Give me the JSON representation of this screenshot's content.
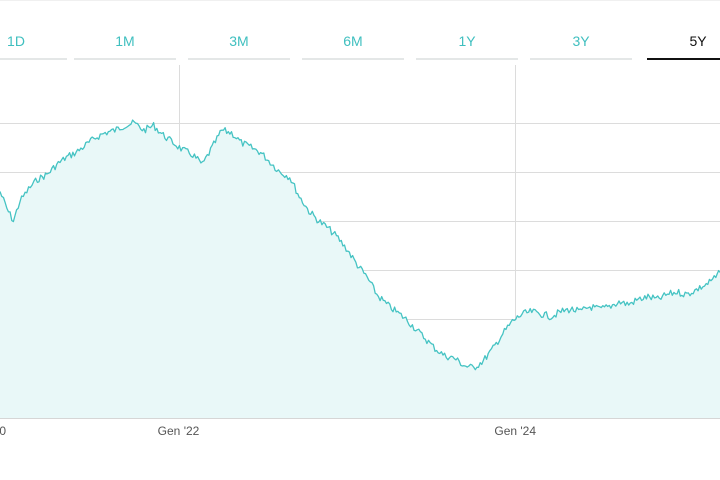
{
  "tabs": [
    {
      "label": "1D",
      "active": false
    },
    {
      "label": "1M",
      "active": false
    },
    {
      "label": "3M",
      "active": false
    },
    {
      "label": "6M",
      "active": false
    },
    {
      "label": "1Y",
      "active": false
    },
    {
      "label": "3Y",
      "active": false
    },
    {
      "label": "5Y",
      "active": true
    }
  ],
  "colors": {
    "accent": "#3fbfbf",
    "line": "#45c3c3",
    "area": "#e9f8f8",
    "grid": "#dcdcdc",
    "active_tab": "#111111"
  },
  "chart_data": {
    "type": "area",
    "title": "",
    "xlabel": "",
    "ylabel": "",
    "x_ticks": [
      "0",
      "Gen '22",
      "Gen '24"
    ],
    "x_tick_dates": [
      "2021-01-01",
      "2022-01-01",
      "2024-01-01"
    ],
    "x_range": [
      "2020-12-10",
      "2025-03-20"
    ],
    "y_range": [
      0,
      100
    ],
    "y_gridlines": [
      20,
      40,
      60,
      80,
      100
    ],
    "grid": true,
    "legend": "none",
    "series": [
      {
        "values": [
          [
            "2020-12-10",
            72
          ],
          [
            "2020-12-25",
            65
          ],
          [
            "2021-01-08",
            60
          ],
          [
            "2021-01-22",
            68
          ],
          [
            "2021-02-10",
            73
          ],
          [
            "2021-03-01",
            77
          ],
          [
            "2021-03-22",
            79
          ],
          [
            "2021-04-12",
            83
          ],
          [
            "2021-05-03",
            86
          ],
          [
            "2021-05-24",
            88
          ],
          [
            "2021-06-14",
            91
          ],
          [
            "2021-07-05",
            94
          ],
          [
            "2021-07-26",
            96
          ],
          [
            "2021-08-16",
            97
          ],
          [
            "2021-09-06",
            99
          ],
          [
            "2021-09-27",
            100
          ],
          [
            "2021-10-18",
            97
          ],
          [
            "2021-11-08",
            99
          ],
          [
            "2021-11-29",
            95
          ],
          [
            "2021-12-20",
            92
          ],
          [
            "2022-01-10",
            89
          ],
          [
            "2022-02-01",
            87
          ],
          [
            "2022-02-22",
            83
          ],
          [
            "2022-03-15",
            90
          ],
          [
            "2022-04-05",
            97
          ],
          [
            "2022-04-26",
            96
          ],
          [
            "2022-05-17",
            92
          ],
          [
            "2022-06-07",
            90
          ],
          [
            "2022-06-28",
            88
          ],
          [
            "2022-07-19",
            84
          ],
          [
            "2022-08-09",
            80
          ],
          [
            "2022-08-30",
            78
          ],
          [
            "2022-09-20",
            70
          ],
          [
            "2022-10-11",
            64
          ],
          [
            "2022-11-01",
            60
          ],
          [
            "2022-11-22",
            57
          ],
          [
            "2022-12-13",
            53
          ],
          [
            "2023-01-03",
            48
          ],
          [
            "2023-01-24",
            42
          ],
          [
            "2023-02-14",
            37
          ],
          [
            "2023-03-07",
            30
          ],
          [
            "2023-03-28",
            26
          ],
          [
            "2023-04-18",
            23
          ],
          [
            "2023-05-09",
            20
          ],
          [
            "2023-05-30",
            16
          ],
          [
            "2023-06-20",
            12
          ],
          [
            "2023-07-11",
            8
          ],
          [
            "2023-08-01",
            5
          ],
          [
            "2023-08-22",
            4
          ],
          [
            "2023-09-12",
            1
          ],
          [
            "2023-10-03",
            0
          ],
          [
            "2023-10-24",
            3
          ],
          [
            "2023-11-14",
            8
          ],
          [
            "2023-12-05",
            14
          ],
          [
            "2023-12-26",
            19
          ],
          [
            "2024-01-16",
            22
          ],
          [
            "2024-02-06",
            23
          ],
          [
            "2024-02-27",
            22
          ],
          [
            "2024-03-19",
            21
          ],
          [
            "2024-04-09",
            23
          ],
          [
            "2024-04-30",
            24
          ],
          [
            "2024-05-21",
            23
          ],
          [
            "2024-06-11",
            25
          ],
          [
            "2024-07-02",
            24
          ],
          [
            "2024-07-23",
            25
          ],
          [
            "2024-08-13",
            27
          ],
          [
            "2024-09-03",
            26
          ],
          [
            "2024-09-24",
            28
          ],
          [
            "2024-10-15",
            29
          ],
          [
            "2024-11-05",
            28
          ],
          [
            "2024-11-26",
            30
          ],
          [
            "2024-12-17",
            31
          ],
          [
            "2025-01-07",
            30
          ],
          [
            "2025-01-28",
            32
          ],
          [
            "2025-02-18",
            34
          ],
          [
            "2025-03-11",
            37
          ],
          [
            "2025-03-20",
            39
          ]
        ]
      }
    ]
  }
}
